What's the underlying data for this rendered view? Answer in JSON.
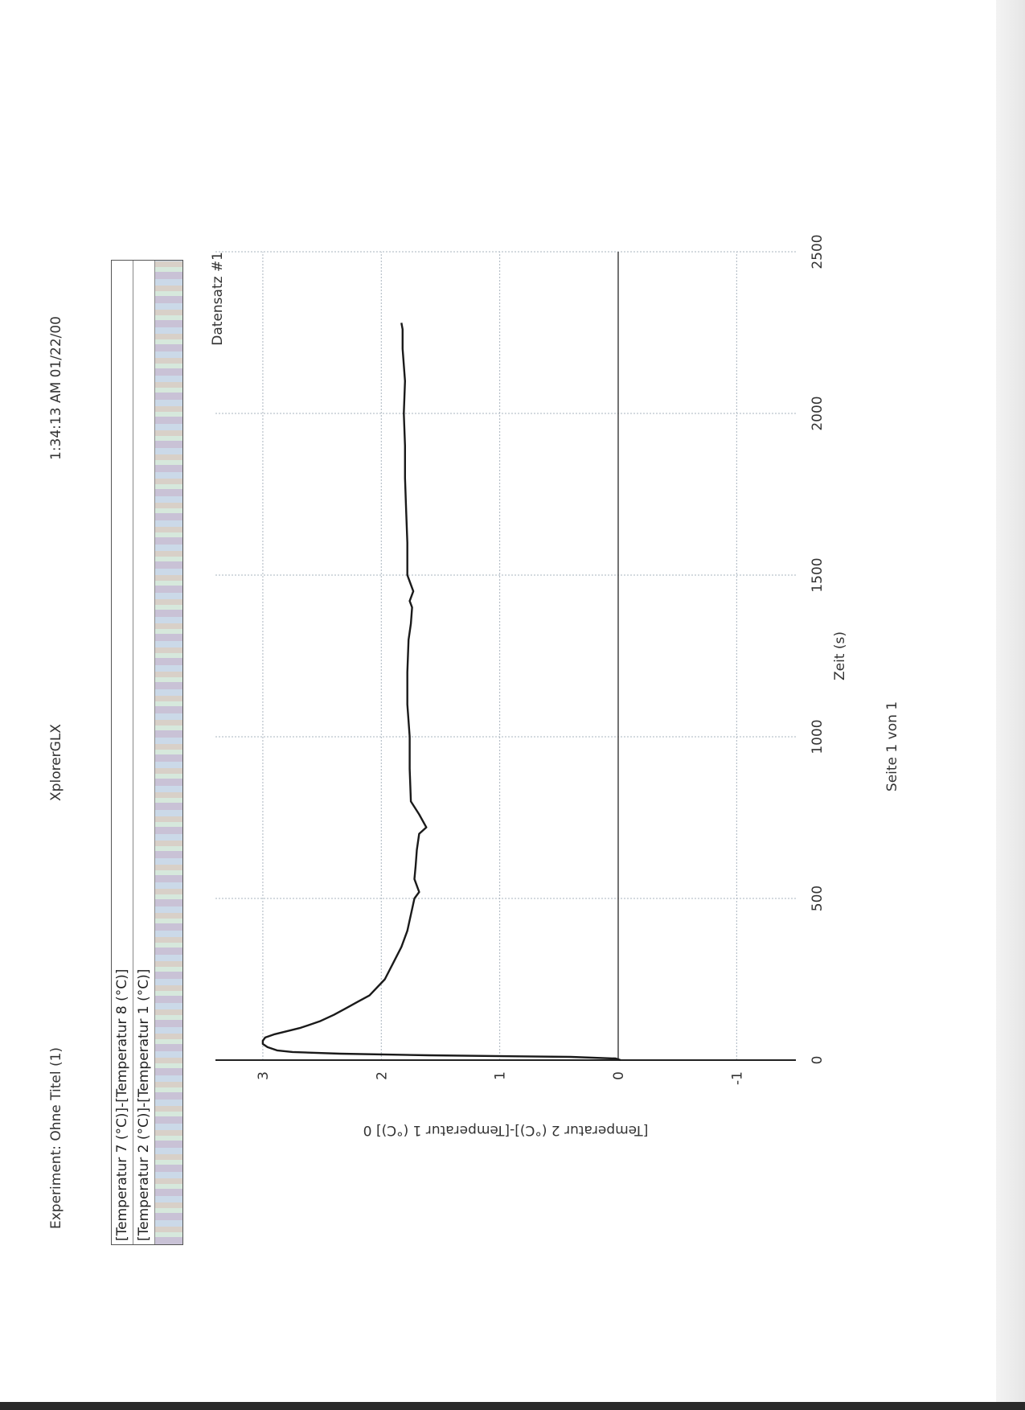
{
  "header": {
    "experiment": "Experiment: Ohne Titel (1)",
    "app": "XplorerGLX",
    "timestamp": "1:34:13 AM  01/22/00"
  },
  "legend": {
    "entries": [
      "[Temperatur 7 (°C)]-[Temperatur 8 (°C)]",
      "[Temperatur 2 (°C)]-[Temperatur 1 (°C)]"
    ]
  },
  "footer": {
    "page": "Seite 1 von 1"
  },
  "chart_data": {
    "type": "line",
    "xlabel": "Zeit (s)",
    "ylabel": "[Temperatur 2 (°C)]-[Temperatur 1 (°C)] 0",
    "annotation": "Datensatz #1",
    "xlim": [
      0,
      2500
    ],
    "ylim": [
      -1.5,
      3.4
    ],
    "x_ticks": [
      0,
      500,
      1000,
      1500,
      2000,
      2500
    ],
    "y_ticks": [
      -1,
      0,
      1,
      2,
      3
    ],
    "grid": true,
    "series": [
      {
        "name": "[Temperatur 2 (°C)]-[Temperatur 1 (°C)]",
        "color": "#1a1a1a",
        "x": [
          0,
          5,
          10,
          15,
          20,
          25,
          30,
          40,
          50,
          60,
          70,
          80,
          100,
          120,
          140,
          160,
          180,
          200,
          250,
          300,
          350,
          400,
          450,
          500,
          520,
          560,
          600,
          650,
          700,
          720,
          760,
          800,
          900,
          1000,
          1100,
          1200,
          1300,
          1350,
          1400,
          1420,
          1450,
          1500,
          1600,
          1700,
          1800,
          1900,
          2000,
          2100,
          2200,
          2260,
          2280
        ],
        "y": [
          -0.02,
          0.02,
          0.4,
          1.6,
          2.35,
          2.75,
          2.88,
          2.96,
          3.0,
          3.0,
          2.98,
          2.9,
          2.68,
          2.52,
          2.4,
          2.3,
          2.2,
          2.1,
          1.97,
          1.9,
          1.83,
          1.78,
          1.75,
          1.72,
          1.68,
          1.72,
          1.71,
          1.7,
          1.68,
          1.62,
          1.68,
          1.75,
          1.76,
          1.76,
          1.78,
          1.78,
          1.77,
          1.75,
          1.74,
          1.76,
          1.73,
          1.78,
          1.78,
          1.79,
          1.8,
          1.8,
          1.81,
          1.8,
          1.82,
          1.82,
          1.83
        ]
      }
    ]
  }
}
